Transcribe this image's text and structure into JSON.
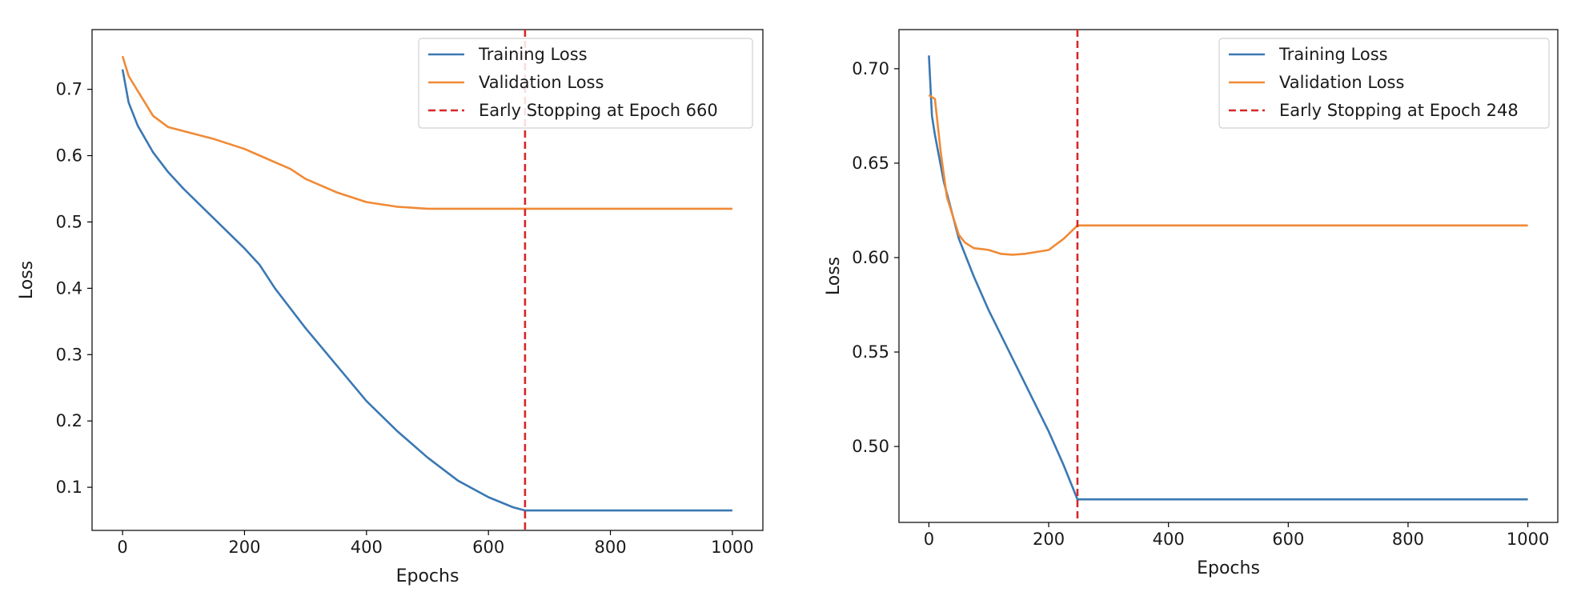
{
  "chart_data": [
    {
      "type": "line",
      "xlabel": "Epochs",
      "ylabel": "Loss",
      "xlim": [
        -50,
        1050
      ],
      "ylim": [
        0.035,
        0.79
      ],
      "xticks": [
        0,
        200,
        400,
        600,
        800,
        1000
      ],
      "yticks": [
        0.1,
        0.2,
        0.3,
        0.4,
        0.5,
        0.6,
        0.7
      ],
      "grid": false,
      "legend_position": "top-right",
      "colors": {
        "training": "#3b78b3",
        "validation": "#f08a36",
        "early_stop": "#d62728"
      },
      "series": [
        {
          "name": "Training Loss",
          "x": [
            0,
            10,
            25,
            50,
            75,
            100,
            150,
            200,
            225,
            250,
            300,
            350,
            400,
            450,
            500,
            550,
            600,
            640,
            660,
            700,
            800,
            900,
            1000
          ],
          "y": [
            0.73,
            0.68,
            0.645,
            0.605,
            0.575,
            0.55,
            0.505,
            0.46,
            0.435,
            0.4,
            0.34,
            0.285,
            0.23,
            0.185,
            0.145,
            0.11,
            0.085,
            0.07,
            0.065,
            0.065,
            0.065,
            0.065,
            0.065
          ]
        },
        {
          "name": "Validation Loss",
          "x": [
            0,
            10,
            20,
            30,
            40,
            50,
            75,
            100,
            150,
            200,
            225,
            250,
            275,
            300,
            350,
            400,
            450,
            500,
            550,
            600,
            660,
            700,
            800,
            900,
            1000
          ],
          "y": [
            0.75,
            0.72,
            0.705,
            0.69,
            0.675,
            0.66,
            0.643,
            0.637,
            0.625,
            0.61,
            0.6,
            0.59,
            0.58,
            0.565,
            0.545,
            0.53,
            0.523,
            0.52,
            0.52,
            0.52,
            0.52,
            0.52,
            0.52,
            0.52,
            0.52
          ]
        }
      ],
      "early_stop": {
        "epoch": 660,
        "label": "Early Stopping at Epoch 660"
      }
    },
    {
      "type": "line",
      "xlabel": "Epochs",
      "ylabel": "Loss",
      "xlim": [
        -50,
        1050
      ],
      "ylim": [
        0.4598,
        0.7207
      ],
      "xticks": [
        0,
        200,
        400,
        600,
        800,
        1000
      ],
      "yticks": [
        0.5,
        0.55,
        0.6,
        0.65,
        0.7
      ],
      "ytick_labels": [
        "0.50",
        "0.55",
        "0.60",
        "0.65",
        "0.70"
      ],
      "grid": false,
      "legend_position": "top-right",
      "colors": {
        "training": "#3b78b3",
        "validation": "#f08a36",
        "early_stop": "#d62728"
      },
      "series": [
        {
          "name": "Training Loss",
          "x": [
            0,
            5,
            10,
            25,
            50,
            75,
            100,
            150,
            200,
            225,
            248,
            300,
            400,
            500,
            600,
            700,
            800,
            900,
            1000
          ],
          "y": [
            0.707,
            0.675,
            0.665,
            0.64,
            0.61,
            0.59,
            0.572,
            0.54,
            0.508,
            0.49,
            0.472,
            0.472,
            0.472,
            0.472,
            0.472,
            0.472,
            0.472,
            0.472,
            0.472
          ]
        },
        {
          "name": "Validation Loss",
          "x": [
            0,
            5,
            10,
            20,
            30,
            40,
            50,
            60,
            75,
            90,
            100,
            120,
            140,
            160,
            180,
            200,
            225,
            248,
            300,
            400,
            500,
            600,
            700,
            800,
            900,
            1000
          ],
          "y": [
            0.686,
            0.685,
            0.684,
            0.655,
            0.632,
            0.622,
            0.612,
            0.608,
            0.605,
            0.6045,
            0.604,
            0.602,
            0.6015,
            0.602,
            0.603,
            0.604,
            0.61,
            0.617,
            0.617,
            0.617,
            0.617,
            0.617,
            0.617,
            0.617,
            0.617,
            0.617
          ]
        }
      ],
      "early_stop": {
        "epoch": 248,
        "label": "Early Stopping at Epoch 248"
      }
    }
  ]
}
